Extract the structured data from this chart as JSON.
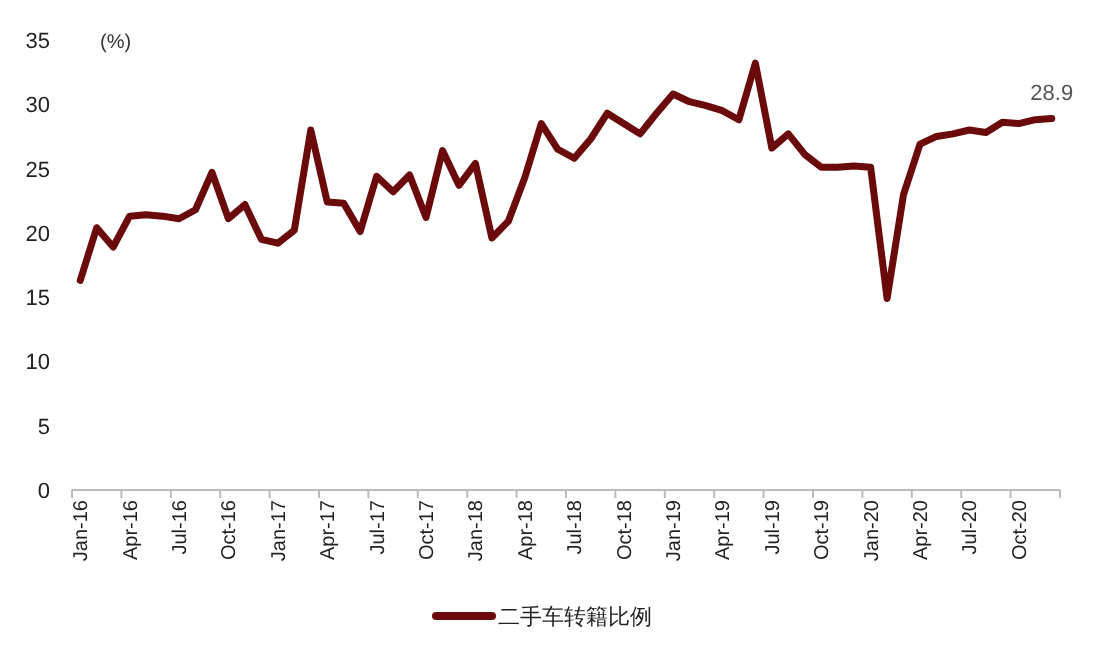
{
  "chart_data": {
    "type": "line",
    "ylabel": "(%)",
    "categories": [
      "Jan-16",
      null,
      null,
      "Apr-16",
      null,
      null,
      "Jul-16",
      null,
      null,
      "Oct-16",
      null,
      null,
      "Jan-17",
      null,
      null,
      "Apr-17",
      null,
      null,
      "Jul-17",
      null,
      null,
      "Oct-17",
      null,
      null,
      "Jan-18",
      null,
      null,
      "Apr-18",
      null,
      null,
      "Jul-18",
      null,
      null,
      "Oct-18",
      null,
      null,
      "Jan-19",
      null,
      null,
      "Apr-19",
      null,
      null,
      "Jul-19",
      null,
      null,
      "Oct-19",
      null,
      null,
      "Jan-20",
      null,
      null,
      "Apr-20",
      null,
      null,
      "Jul-20",
      null,
      null,
      "Oct-20",
      null,
      null
    ],
    "series": [
      {
        "name": "二手车转籍比例",
        "color": "#6b0a0a",
        "values": [
          16.3,
          20.4,
          18.9,
          21.3,
          21.4,
          21.3,
          21.1,
          21.8,
          24.7,
          21.1,
          22.2,
          19.5,
          19.2,
          20.2,
          28.0,
          22.4,
          22.3,
          20.1,
          24.4,
          23.2,
          24.5,
          21.2,
          26.4,
          23.7,
          25.4,
          19.6,
          20.9,
          24.3,
          28.5,
          26.5,
          25.8,
          27.3,
          29.3,
          28.5,
          27.7,
          29.3,
          30.8,
          30.2,
          29.9,
          29.5,
          28.8,
          33.2,
          26.6,
          27.7,
          26.1,
          25.1,
          25.1,
          25.2,
          25.1,
          14.9,
          23.0,
          26.9,
          27.5,
          27.7,
          28.0,
          27.8,
          28.6,
          28.5,
          28.8,
          28.9
        ],
        "value_labels": [
          null,
          null,
          null,
          null,
          null,
          null,
          null,
          null,
          null,
          null,
          null,
          null,
          null,
          null,
          null,
          null,
          null,
          null,
          null,
          null,
          null,
          null,
          null,
          null,
          null,
          null,
          null,
          null,
          null,
          null,
          null,
          null,
          null,
          null,
          null,
          null,
          null,
          null,
          null,
          null,
          null,
          null,
          null,
          null,
          null,
          null,
          null,
          null,
          null,
          null,
          null,
          null,
          null,
          null,
          null,
          null,
          null,
          null,
          null,
          "28.9"
        ]
      }
    ],
    "ylim": [
      0,
      35
    ],
    "yticks": [
      0,
      5,
      10,
      15,
      20,
      25,
      30,
      35
    ],
    "legend": "bottom",
    "grid": false
  }
}
